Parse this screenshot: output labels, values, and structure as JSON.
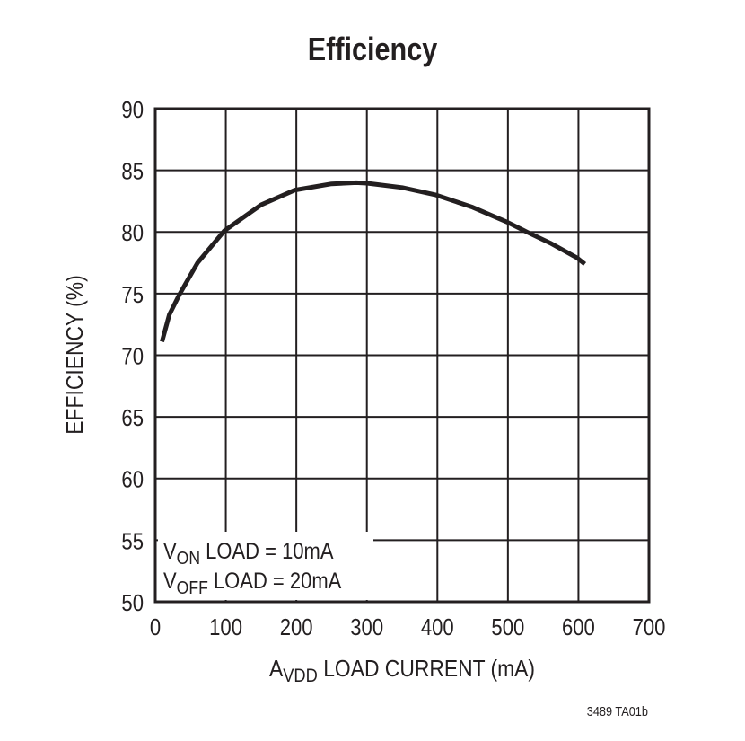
{
  "chart_data": {
    "type": "line",
    "title": "Efficiency",
    "xlabel": {
      "main": "A",
      "sub": "VDD",
      "rest": " LOAD CURRENT (mA)"
    },
    "ylabel": "EFFICIENCY (%)",
    "xlim": [
      0,
      700
    ],
    "ylim": [
      50,
      90
    ],
    "xticks": [
      0,
      100,
      200,
      300,
      400,
      500,
      600,
      700
    ],
    "yticks": [
      50,
      55,
      60,
      65,
      70,
      75,
      80,
      85,
      90
    ],
    "grid": true,
    "annotations": [
      {
        "main": "V",
        "sub": "ON",
        "rest": " LOAD = 10mA"
      },
      {
        "main": "V",
        "sub": "OFF",
        "rest": " LOAD = 20mA"
      }
    ],
    "footnote": "3489 TA01b",
    "line_color": "#231f20",
    "series": [
      {
        "x": [
          9.5,
          20,
          34,
          60,
          98,
          150,
          198,
          250,
          285,
          300,
          350,
          398,
          450,
          499,
          527,
          560,
          598,
          609
        ],
        "y": [
          71.1,
          73.3,
          74.9,
          77.5,
          80.1,
          82.2,
          83.4,
          83.9,
          84.0,
          83.95,
          83.6,
          83.0,
          82.0,
          80.8,
          80.0,
          79.1,
          77.9,
          77.4
        ]
      }
    ]
  }
}
